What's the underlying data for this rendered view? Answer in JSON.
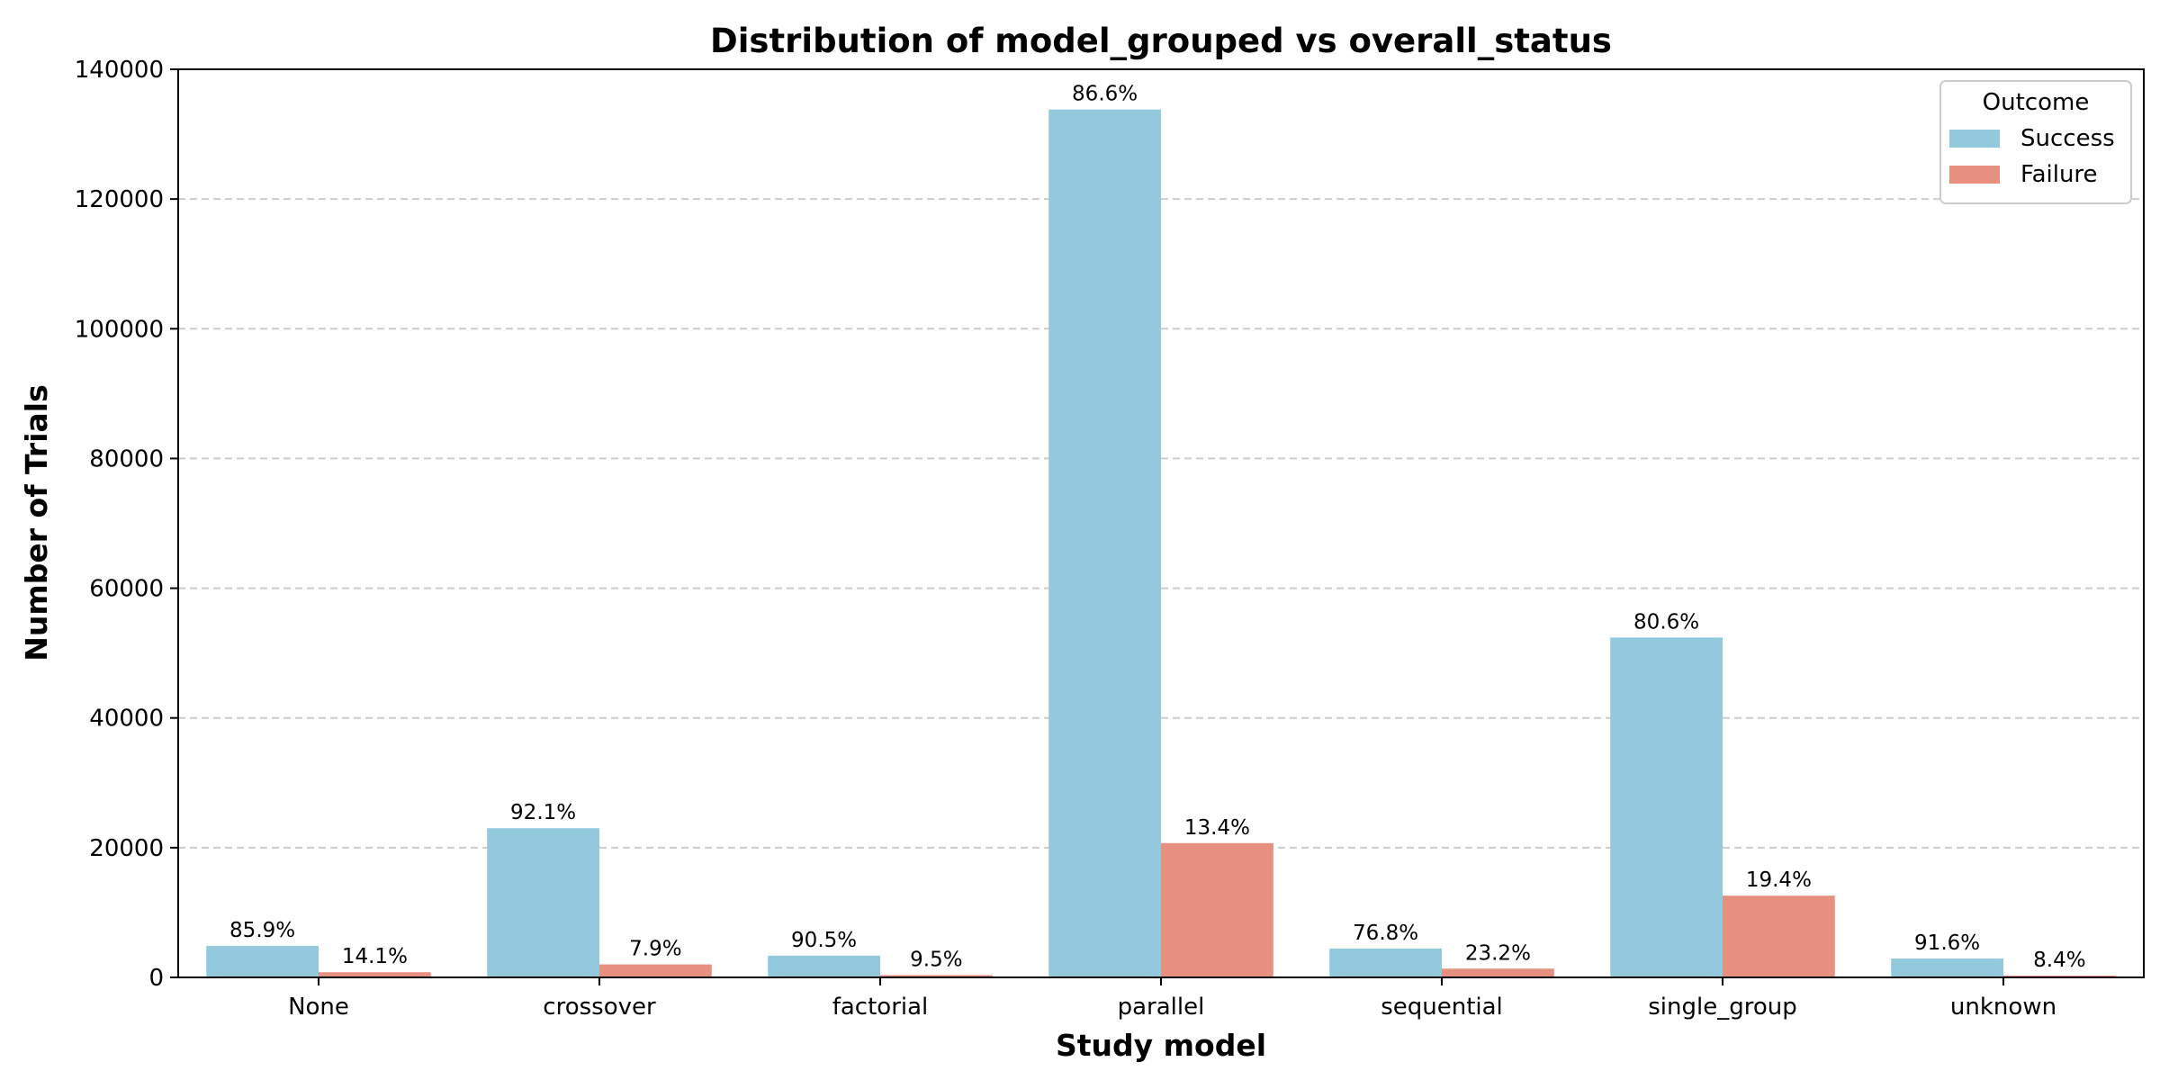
{
  "chart_data": {
    "type": "bar",
    "title": "Distribution of model_grouped vs overall_status",
    "xlabel": "Study model",
    "ylabel": "Number of Trials",
    "categories": [
      "None",
      "crossover",
      "factorial",
      "parallel",
      "sequential",
      "single_group",
      "unknown"
    ],
    "series": [
      {
        "name": "Success",
        "color": "#92C9DD",
        "values": [
          4850,
          23000,
          3350,
          133800,
          4450,
          52400,
          2900
        ],
        "labels": [
          "85.9%",
          "92.1%",
          "90.5%",
          "86.6%",
          "76.8%",
          "80.6%",
          "91.6%"
        ]
      },
      {
        "name": "Failure",
        "color": "#E8907F",
        "values": [
          800,
          2000,
          350,
          20700,
          1350,
          12600,
          270
        ],
        "labels": [
          "14.1%",
          "7.9%",
          "9.5%",
          "13.4%",
          "23.2%",
          "19.4%",
          "8.4%"
        ]
      }
    ],
    "ylim": [
      0,
      140000
    ],
    "yticks": [
      "0",
      "20000",
      "40000",
      "60000",
      "80000",
      "100000",
      "120000",
      "140000"
    ],
    "grid": "y-dashed",
    "legend": {
      "title": "Outcome",
      "position": "top-right"
    }
  }
}
